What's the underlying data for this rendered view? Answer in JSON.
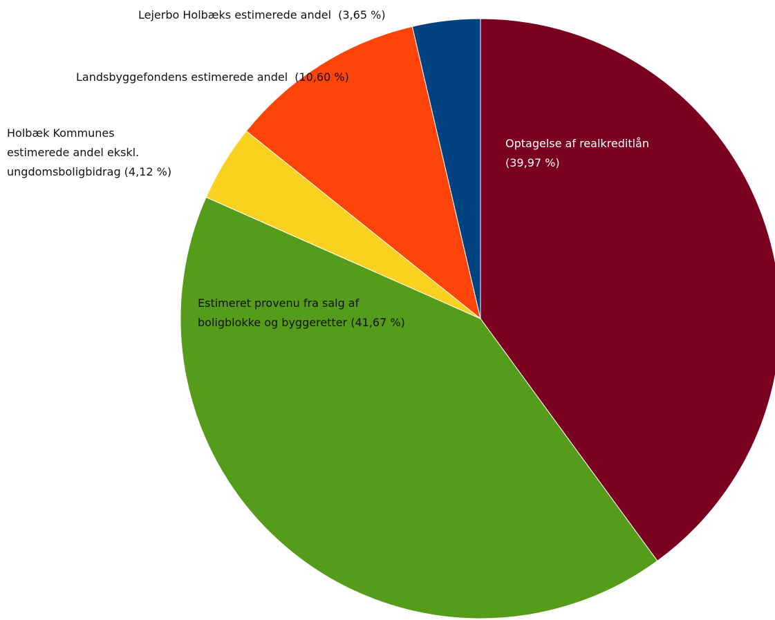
{
  "chart_data": {
    "type": "pie",
    "slices": [
      {
        "label": "Optagelse af realkreditlån",
        "value_text": "(39,97 %)",
        "value": 39.97,
        "color": "#7a0020",
        "label_color": "#ffffff"
      },
      {
        "label": "Estimeret provenu fra salg af boligblokke og byggeretter",
        "value_text": "(41,67 %)",
        "value": 41.67,
        "color": "#559c1b",
        "label_color": "#111111"
      },
      {
        "label": "Holbæk  Kommunes estimerede andel ekskl. ungdomsboligbidrag",
        "value_text": "(4,12 %)",
        "value": 4.12,
        "color": "#fad11e",
        "label_color": "#111111"
      },
      {
        "label": "Landsbyggefondens estimerede andel",
        "value_text": "(10,60 %)",
        "value": 10.6,
        "color": "#fe4408",
        "label_color": "#111111"
      },
      {
        "label": "Lejerbo Holbæks estimerede andel",
        "value_text": "(3,65 %)",
        "value": 3.65,
        "color": "#004180",
        "label_color": "#111111"
      }
    ],
    "start": "12 o'clock",
    "direction": "clockwise"
  }
}
